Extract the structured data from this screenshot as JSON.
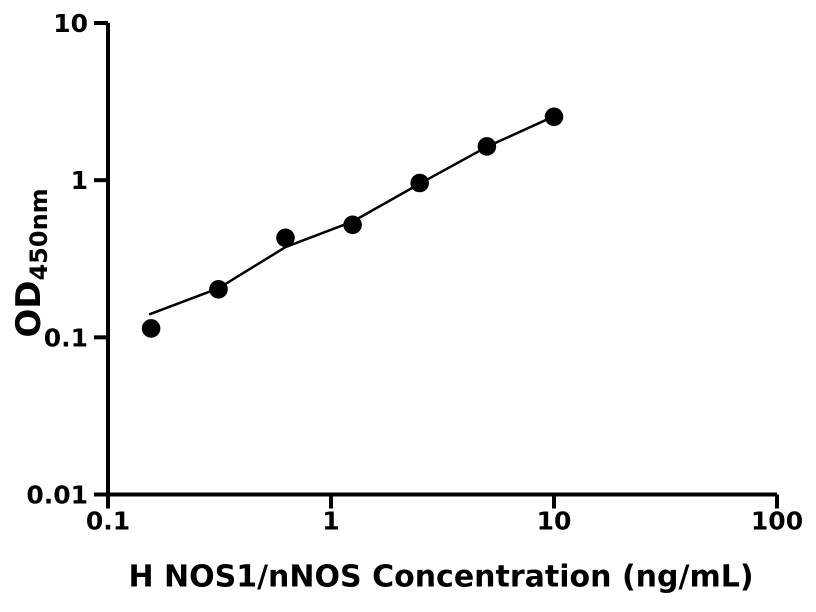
{
  "figure": {
    "background_color": "#ffffff",
    "foreground_color": "#000000"
  },
  "chart_data": {
    "type": "scatter",
    "subtype": "elisa-standard-curve",
    "title": "",
    "xlabel": "H NOS1/nNOS Concentration (ng/mL)",
    "ylabel_base": "OD",
    "ylabel_sub": "450nm",
    "x_scale": "log",
    "y_scale": "log",
    "xlim": [
      0.1,
      100
    ],
    "ylim": [
      0.01,
      10
    ],
    "x_ticks": [
      0.1,
      1,
      10,
      100
    ],
    "y_ticks": [
      0.01,
      0.1,
      1,
      10
    ],
    "grid": false,
    "legend": false,
    "series": [
      {
        "name": "standards",
        "marker": "filled-circle",
        "color": "#000000",
        "x": [
          0.156,
          0.313,
          0.625,
          1.25,
          2.5,
          5,
          10
        ],
        "y": [
          0.114,
          0.202,
          0.43,
          0.52,
          0.96,
          1.64,
          2.53
        ]
      }
    ],
    "fit_line": {
      "color": "#000000",
      "x": [
        0.153,
        0.3125,
        0.625,
        1.25,
        2.5,
        5,
        10
      ],
      "y": [
        0.14,
        0.205,
        0.375,
        0.545,
        0.95,
        1.63,
        2.55
      ]
    }
  }
}
